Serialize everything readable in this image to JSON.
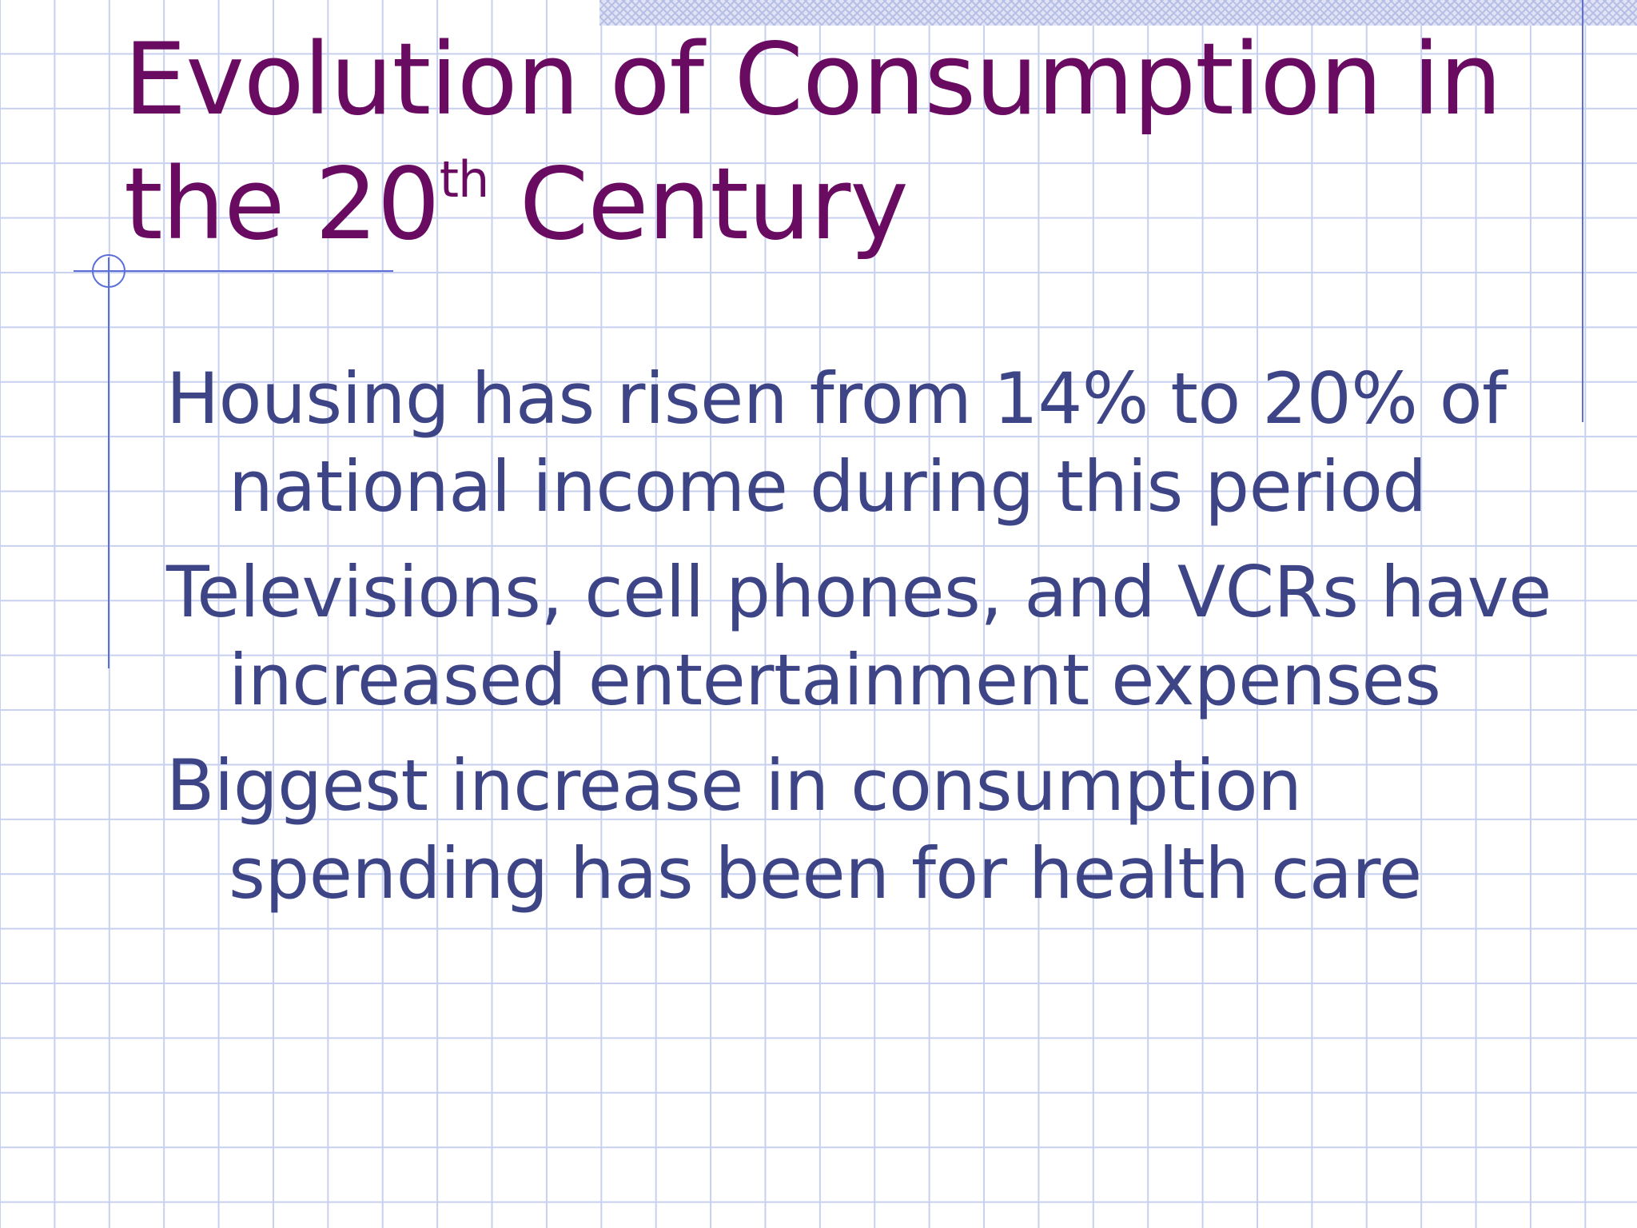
{
  "slide": {
    "title": {
      "line1": "Evolution of Consumption in",
      "line2_prefix": "the 20",
      "line2_superscript": "th",
      "line2_suffix": " Century"
    },
    "bullets": [
      "Housing has risen from 14% to 20% of national income during this period",
      "Televisions, cell phones, and VCRs have increased entertainment expenses",
      "Biggest increase in consumption spending has been for health care"
    ]
  },
  "colors": {
    "title": "#6a0b62",
    "body_text": "#3d4587",
    "grid_lines": "#c8d0ef",
    "accent_rules": "#5b6fd6"
  }
}
